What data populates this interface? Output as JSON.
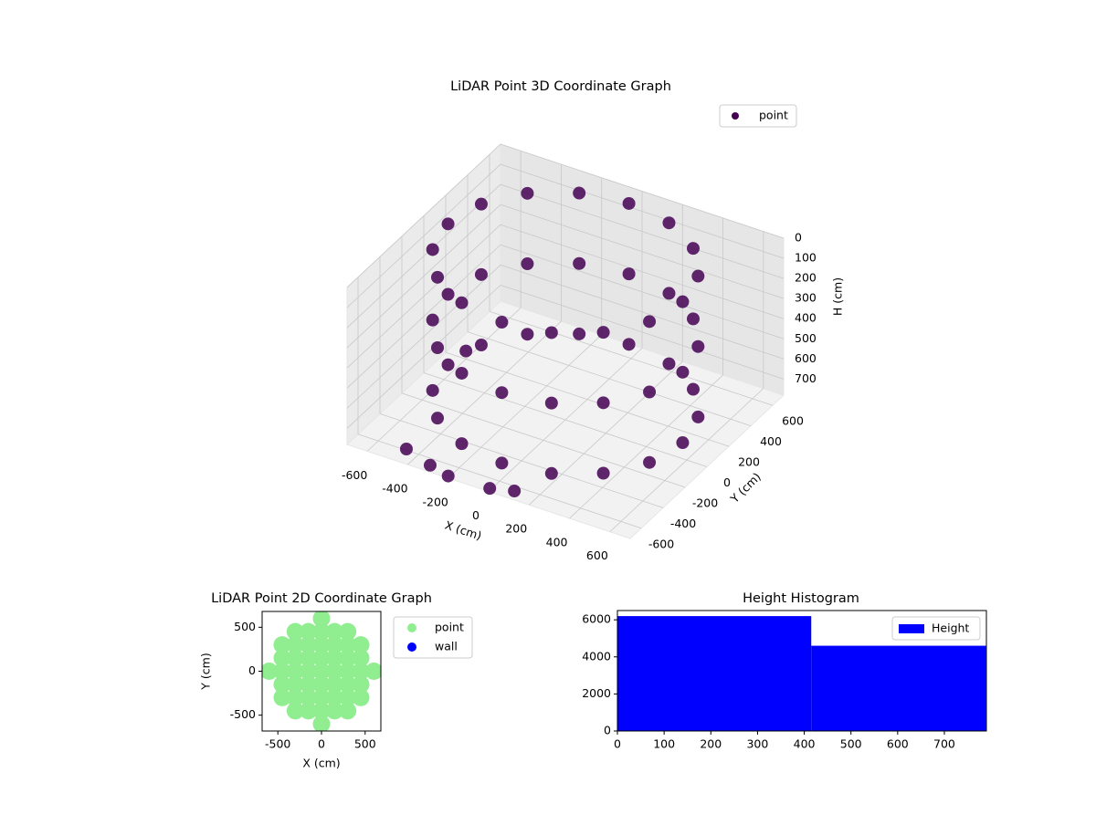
{
  "chart_data": [
    {
      "type": "scatter3d",
      "title": "LiDAR Point 3D Coordinate Graph",
      "xlabel": "X (cm)",
      "ylabel": "Y (cm)",
      "zlabel": "H (cm)",
      "xlim": [
        -700,
        700
      ],
      "ylim": [
        -700,
        700
      ],
      "zlim": [
        780,
        0
      ],
      "xticks": [
        -600,
        -400,
        -200,
        0,
        200,
        400,
        600
      ],
      "yticks": [
        -600,
        -400,
        -200,
        0,
        200,
        400,
        600
      ],
      "zticks": [
        0,
        100,
        200,
        300,
        400,
        500,
        600,
        700
      ],
      "grid": true,
      "legend": "upper right",
      "series": [
        {
          "name": "point",
          "color": "#440154",
          "x": [
            580,
            536,
            410,
            222,
            0,
            -222,
            -410,
            -536,
            -580,
            -536,
            -410,
            -222,
            0,
            222,
            410,
            536,
            580,
            536,
            410,
            222,
            0,
            -222,
            -410,
            -536,
            -580,
            -536,
            -410,
            -222,
            0,
            222,
            410,
            536,
            580,
            536,
            410,
            222,
            0,
            -222,
            -410,
            -536,
            -580,
            -536,
            -410,
            -222,
            0,
            222,
            410,
            536,
            -450,
            -300,
            -200,
            0,
            100,
            -600
          ],
          "y": [
            0,
            222,
            410,
            536,
            580,
            536,
            410,
            222,
            0,
            -222,
            -410,
            -536,
            -580,
            -536,
            -410,
            -222,
            0,
            222,
            410,
            536,
            580,
            536,
            410,
            222,
            0,
            -222,
            -410,
            -536,
            -580,
            -536,
            -410,
            -222,
            0,
            222,
            410,
            536,
            580,
            536,
            410,
            222,
            0,
            -222,
            -410,
            -536,
            -580,
            -536,
            -410,
            -222,
            -620,
            -680,
            -700,
            -690,
            -650,
            200
          ],
          "z": [
            0,
            0,
            0,
            0,
            0,
            0,
            0,
            0,
            0,
            0,
            0,
            0,
            0,
            0,
            0,
            0,
            350,
            350,
            350,
            350,
            350,
            350,
            350,
            350,
            350,
            350,
            350,
            350,
            350,
            350,
            350,
            350,
            700,
            700,
            700,
            700,
            700,
            700,
            700,
            700,
            700,
            700,
            700,
            700,
            700,
            700,
            700,
            700,
            760,
            760,
            770,
            770,
            770,
            740
          ]
        }
      ]
    },
    {
      "type": "scatter",
      "title": "LiDAR Point 2D Coordinate Graph",
      "xlabel": "X (cm)",
      "ylabel": "Y (cm)",
      "xlim": [
        -680,
        680
      ],
      "ylim": [
        -680,
        680
      ],
      "xticks": [
        -500,
        0,
        500
      ],
      "yticks": [
        -500,
        0,
        500
      ],
      "legend": "outside right",
      "series": [
        {
          "name": "point",
          "color": "#90ee90",
          "x": [
            0,
            0,
            -300,
            -150,
            0,
            150,
            300,
            -300,
            -150,
            0,
            150,
            300,
            -450,
            -300,
            -150,
            0,
            150,
            300,
            450,
            -450,
            -300,
            -150,
            0,
            150,
            300,
            450,
            -450,
            -300,
            -150,
            0,
            150,
            300,
            450,
            -450,
            -300,
            -150,
            0,
            150,
            300,
            450,
            -600,
            -450,
            -300,
            -150,
            0,
            150,
            300,
            450,
            600
          ],
          "y": [
            600,
            -600,
            450,
            450,
            450,
            450,
            450,
            -450,
            -450,
            -450,
            -450,
            -450,
            300,
            300,
            300,
            300,
            300,
            300,
            300,
            -300,
            -300,
            -300,
            -300,
            -300,
            -300,
            -300,
            150,
            150,
            150,
            150,
            150,
            150,
            150,
            -150,
            -150,
            -150,
            -150,
            -150,
            -150,
            -150,
            0,
            0,
            0,
            0,
            0,
            0,
            0,
            0,
            0
          ]
        },
        {
          "name": "wall",
          "color": "#0000ff",
          "x": [],
          "y": []
        }
      ]
    },
    {
      "type": "histogram",
      "title": "Height Histogram",
      "bins": [
        0,
        415,
        790
      ],
      "values": [
        6200,
        4600
      ],
      "color": "#0000ff",
      "name": "Height",
      "xlim": [
        0,
        790
      ],
      "ylim": [
        0,
        6500
      ],
      "xticks": [
        0,
        100,
        200,
        300,
        400,
        500,
        600,
        700
      ],
      "yticks": [
        0,
        2000,
        4000,
        6000
      ],
      "legend": "upper right"
    }
  ]
}
